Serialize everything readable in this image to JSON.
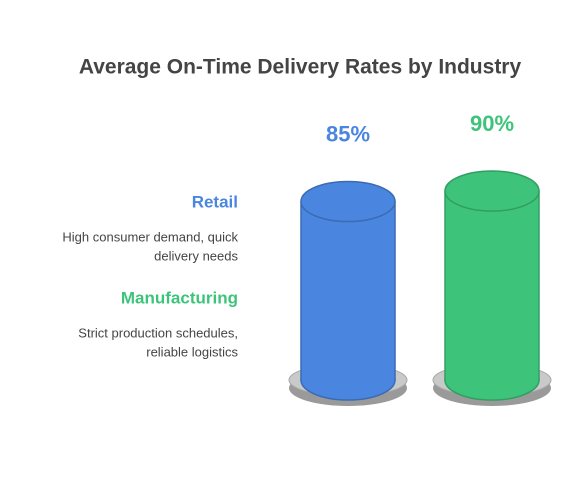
{
  "chart_data": {
    "type": "cylinder",
    "title": "Average On-Time Delivery Rates by Industry",
    "categories": [
      "Retail",
      "Manufacturing"
    ],
    "descriptions": [
      [
        "High consumer demand, quick",
        "delivery needs"
      ],
      [
        "Strict production schedules,",
        "reliable logistics"
      ]
    ],
    "values": [
      85,
      90
    ],
    "value_labels": [
      "85%",
      "90%"
    ],
    "colors": [
      "#4a86e0",
      "#3ec47a"
    ]
  }
}
